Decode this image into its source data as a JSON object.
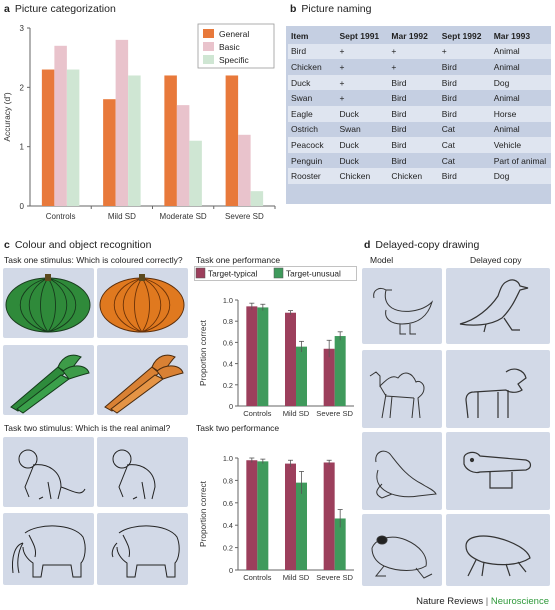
{
  "panel_a": {
    "letter": "a",
    "title": "Picture categorization",
    "chart_data": {
      "type": "bar",
      "categories": [
        "Controls",
        "Mild SD",
        "Moderate SD",
        "Severe SD"
      ],
      "series": [
        {
          "name": "General",
          "color": "#e8793b",
          "values": [
            2.3,
            1.8,
            2.2,
            2.2
          ]
        },
        {
          "name": "Basic",
          "color": "#e9c3cc",
          "values": [
            2.7,
            2.8,
            1.7,
            1.2
          ]
        },
        {
          "name": "Specific",
          "color": "#cfe6d3",
          "values": [
            2.3,
            2.2,
            1.1,
            0.25
          ]
        }
      ],
      "ylabel": "Accuracy (d')",
      "ylim": [
        0,
        3
      ],
      "yticks": [
        "0",
        "1",
        "2",
        "3"
      ],
      "legend_position": "top-right"
    }
  },
  "panel_b": {
    "letter": "b",
    "title": "Picture naming",
    "headers": [
      "Item",
      "Sept 1991",
      "Mar 1992",
      "Sept 1992",
      "Mar 1993"
    ],
    "rows": [
      [
        "Bird",
        "+",
        "+",
        "+",
        "Animal"
      ],
      [
        "Chicken",
        "+",
        "+",
        "Bird",
        "Animal"
      ],
      [
        "Duck",
        "+",
        "Bird",
        "Bird",
        "Dog"
      ],
      [
        "Swan",
        "+",
        "Bird",
        "Bird",
        "Animal"
      ],
      [
        "Eagle",
        "Duck",
        "Bird",
        "Bird",
        "Horse"
      ],
      [
        "Ostrich",
        "Swan",
        "Bird",
        "Cat",
        "Animal"
      ],
      [
        "Peacock",
        "Duck",
        "Bird",
        "Cat",
        "Vehicle"
      ],
      [
        "Penguin",
        "Duck",
        "Bird",
        "Cat",
        "Part of animal"
      ],
      [
        "Rooster",
        "Chicken",
        "Chicken",
        "Bird",
        "Dog"
      ]
    ]
  },
  "panel_c": {
    "letter": "c",
    "title": "Colour and object recognition",
    "task_one_stimulus": "Task one stimulus: Which is coloured correctly?",
    "task_one_performance": "Task one performance",
    "task_two_stimulus": "Task two stimulus: Which is the real animal?",
    "task_two_performance": "Task two performance",
    "legend": [
      {
        "name": "Target-typical",
        "color": "#9c3f5c"
      },
      {
        "name": "Target-unusual",
        "color": "#3f9a5c"
      }
    ],
    "chart_data": [
      {
        "type": "bar",
        "categories": [
          "Controls",
          "Mild SD",
          "Severe SD"
        ],
        "series": [
          {
            "name": "Target-typical",
            "values": [
              0.94,
              0.88,
              0.54
            ],
            "errors": [
              0.03,
              0.02,
              0.08
            ]
          },
          {
            "name": "Target-unusual",
            "values": [
              0.93,
              0.56,
              0.66
            ],
            "errors": [
              0.03,
              0.05,
              0.04
            ]
          }
        ],
        "ylabel": "Proportion correct",
        "ylim": [
          0,
          1.0
        ],
        "yticks": [
          "0",
          "0.2",
          "0.4",
          "0.6",
          "0.8",
          "1.0"
        ]
      },
      {
        "type": "bar",
        "categories": [
          "Controls",
          "Mild SD",
          "Severe SD"
        ],
        "series": [
          {
            "name": "Target-typical",
            "values": [
              0.98,
              0.95,
              0.96
            ],
            "errors": [
              0.02,
              0.03,
              0.02
            ]
          },
          {
            "name": "Target-unusual",
            "values": [
              0.97,
              0.78,
              0.46
            ],
            "errors": [
              0.02,
              0.1,
              0.08
            ]
          }
        ],
        "ylabel": "Proportion correct",
        "ylim": [
          0,
          1.0
        ],
        "yticks": [
          "0",
          "0.2",
          "0.4",
          "0.6",
          "0.8",
          "1.0"
        ]
      }
    ]
  },
  "panel_d": {
    "letter": "d",
    "title": "Delayed-copy drawing",
    "col_model": "Model",
    "col_delayed": "Delayed copy"
  },
  "footer": {
    "journal": "Nature Reviews",
    "separator": "|",
    "section": "Neuroscience"
  },
  "colors": {
    "tile_bg": "#d2d9e7",
    "table_band": "#c5cfe2",
    "table_band_alt": "#dfe5f0",
    "neuroscience_green": "#2e9a3a"
  }
}
